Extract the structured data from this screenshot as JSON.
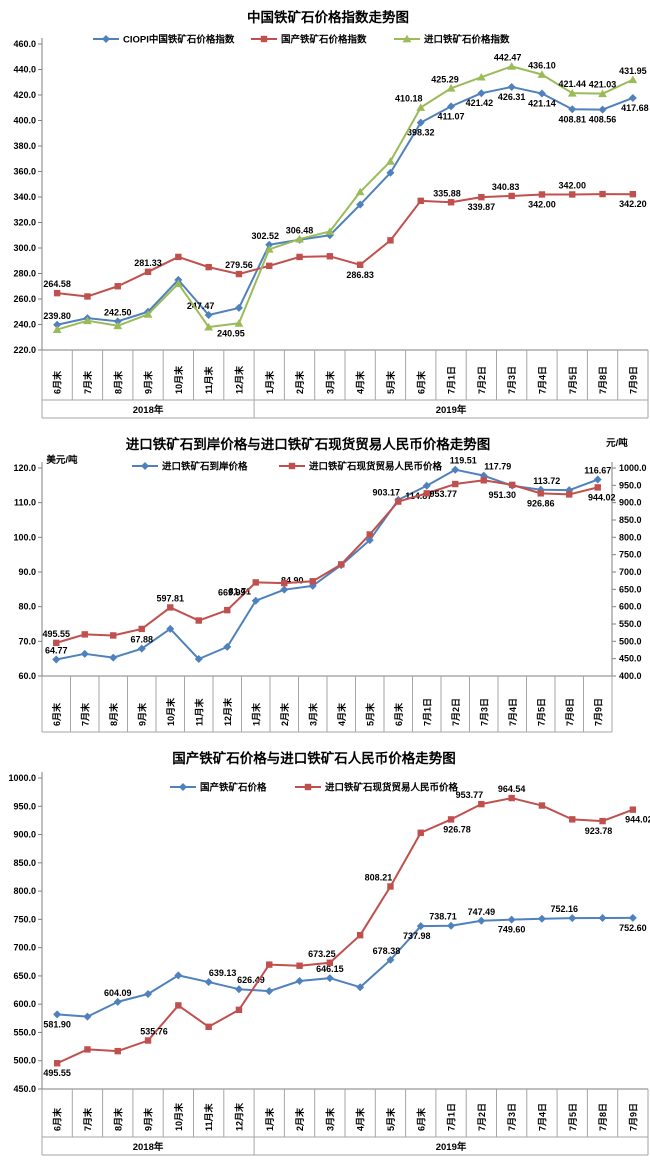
{
  "chart_data": [
    {
      "type": "line",
      "title": "中国铁矿石价格指数走势图",
      "legend_position": "top",
      "grid": "off",
      "y_axis": {
        "min": 220,
        "max": 460,
        "step": 20
      },
      "x_categories": [
        "6月末",
        "7月末",
        "8月末",
        "9月末",
        "10月末",
        "11月末",
        "12月末",
        "1月末",
        "2月末",
        "3月末",
        "4月末",
        "5月末",
        "6月末",
        "7月1日",
        "7月2日",
        "7月3日",
        "7月4日",
        "7月5日",
        "7月8日",
        "7月9日"
      ],
      "x_groups": [
        {
          "label": "2018年",
          "span": 7
        },
        {
          "label": "2019年",
          "span": 13
        }
      ],
      "series": [
        {
          "name": "CIOPI中国铁矿石价格指数",
          "color": "#4F81BD",
          "marker": "diamond",
          "axis": "left",
          "values": [
            239.8,
            245.0,
            242.5,
            250.0,
            275.0,
            247.47,
            253.0,
            302.52,
            306.48,
            310.0,
            334.0,
            359.0,
            398.32,
            411.07,
            421.42,
            426.31,
            421.14,
            408.81,
            408.56,
            417.68
          ],
          "point_labels": [
            {
              "i": 0,
              "text": "239.80",
              "pos": "above"
            },
            {
              "i": 2,
              "text": "242.50",
              "pos": "above"
            },
            {
              "i": 5,
              "text": "247.47",
              "pos": "above",
              "dx": -8
            },
            {
              "i": 7,
              "text": "302.52",
              "pos": "above",
              "dx": -4
            },
            {
              "i": 8,
              "text": "306.48",
              "pos": "above"
            },
            {
              "i": 12,
              "text": "398.32",
              "pos": "below"
            },
            {
              "i": 13,
              "text": "411.07",
              "pos": "below"
            },
            {
              "i": 14,
              "text": "421.42",
              "pos": "below",
              "dx": -2
            },
            {
              "i": 15,
              "text": "426.31",
              "pos": "below"
            },
            {
              "i": 16,
              "text": "421.14",
              "pos": "below"
            },
            {
              "i": 17,
              "text": "408.81",
              "pos": "below"
            },
            {
              "i": 18,
              "text": "408.56",
              "pos": "below"
            },
            {
              "i": 19,
              "text": "417.68",
              "pos": "below",
              "dx": 2
            }
          ]
        },
        {
          "name": "国产铁矿石价格指数",
          "color": "#C0504D",
          "marker": "square",
          "axis": "left",
          "values": [
            264.58,
            262.0,
            270.0,
            281.33,
            293.0,
            285.0,
            279.56,
            286.0,
            293.0,
            293.5,
            286.83,
            306.0,
            337.0,
            335.88,
            339.87,
            340.83,
            342.0,
            342.0,
            342.3,
            342.2
          ],
          "point_labels": [
            {
              "i": 0,
              "text": "264.58",
              "pos": "above"
            },
            {
              "i": 3,
              "text": "281.33",
              "pos": "above"
            },
            {
              "i": 6,
              "text": "279.56",
              "pos": "above"
            },
            {
              "i": 10,
              "text": "286.83",
              "pos": "below"
            },
            {
              "i": 13,
              "text": "335.88",
              "pos": "above",
              "dx": -4
            },
            {
              "i": 14,
              "text": "339.87",
              "pos": "below"
            },
            {
              "i": 15,
              "text": "340.83",
              "pos": "above",
              "dx": -6
            },
            {
              "i": 16,
              "text": "342.00",
              "pos": "below"
            },
            {
              "i": 17,
              "text": "342.00",
              "pos": "above"
            },
            {
              "i": 19,
              "text": "342.20",
              "pos": "below"
            }
          ]
        },
        {
          "name": "进口铁矿石价格指数",
          "color": "#9BBB59",
          "marker": "triangle",
          "axis": "left",
          "values": [
            236.0,
            243.0,
            239.0,
            248.0,
            272.0,
            238.0,
            240.95,
            299.0,
            307.0,
            313.0,
            344.0,
            368.0,
            410.18,
            425.29,
            434.0,
            442.47,
            436.1,
            421.44,
            421.03,
            431.95
          ],
          "point_labels": [
            {
              "i": 6,
              "text": "240.95",
              "pos": "below",
              "dx": -8
            },
            {
              "i": 12,
              "text": "410.18",
              "pos": "above",
              "dx": -12
            },
            {
              "i": 13,
              "text": "425.29",
              "pos": "above",
              "dx": -6
            },
            {
              "i": 15,
              "text": "442.47",
              "pos": "above",
              "dx": -4
            },
            {
              "i": 16,
              "text": "436.10",
              "pos": "above"
            },
            {
              "i": 17,
              "text": "421.44",
              "pos": "above"
            },
            {
              "i": 18,
              "text": "421.03",
              "pos": "above"
            },
            {
              "i": 19,
              "text": "431.95",
              "pos": "above"
            }
          ]
        }
      ]
    },
    {
      "type": "line",
      "title": "进口铁矿石到岸价格与进口铁矿石现货贸易人民币价格走势图",
      "legend_position": "top",
      "grid": "off",
      "y_axis": {
        "min": 60,
        "max": 120,
        "step": 10,
        "unit": "美元/吨"
      },
      "y2_axis": {
        "min": 400,
        "max": 1000,
        "step": 50,
        "unit": "元/吨"
      },
      "x_categories": [
        "6月末",
        "7月末",
        "8月末",
        "9月末",
        "10月末",
        "11月末",
        "12月末",
        "1月末",
        "2月末",
        "3月末",
        "4月末",
        "5月末",
        "6月末",
        "7月1日",
        "7月2日",
        "7月3日",
        "7月4日",
        "7月5日",
        "7月8日",
        "7月9日"
      ],
      "x_groups": null,
      "series": [
        {
          "name": "进口铁矿石到岸价格",
          "color": "#4F81BD",
          "marker": "diamond",
          "axis": "left",
          "values": [
            64.77,
            66.4,
            65.3,
            67.88,
            73.6,
            64.9,
            68.4,
            81.71,
            84.9,
            86.0,
            92.0,
            99.2,
            110.8,
            114.87,
            119.51,
            117.79,
            114.9,
            113.72,
            113.6,
            116.67
          ],
          "point_labels": [
            {
              "i": 0,
              "text": "64.77",
              "pos": "above"
            },
            {
              "i": 3,
              "text": "67.88",
              "pos": "above"
            },
            {
              "i": 7,
              "text": "81.71",
              "pos": "above",
              "dx": -16
            },
            {
              "i": 8,
              "text": "84.90",
              "pos": "above",
              "dx": 8
            },
            {
              "i": 13,
              "text": "114.87",
              "pos": "below",
              "dx": -8
            },
            {
              "i": 14,
              "text": "119.51",
              "pos": "above",
              "dx": 8
            },
            {
              "i": 15,
              "text": "117.79",
              "pos": "above",
              "dx": 14
            },
            {
              "i": 17,
              "text": "113.72",
              "pos": "above",
              "dx": 6
            },
            {
              "i": 19,
              "text": "116.67",
              "pos": "above"
            }
          ]
        },
        {
          "name": "进口铁矿石现货贸易人民币价格",
          "color": "#C0504D",
          "marker": "square",
          "axis": "right",
          "values": [
            495.55,
            520.0,
            517.0,
            535.76,
            597.81,
            560.0,
            590.0,
            669.99,
            668.0,
            673.25,
            722.0,
            808.21,
            903.17,
            926.78,
            953.77,
            964.54,
            951.3,
            926.86,
            923.78,
            944.02
          ],
          "point_labels": [
            {
              "i": 0,
              "text": "495.55",
              "pos": "above"
            },
            {
              "i": 4,
              "text": "597.81",
              "pos": "above"
            },
            {
              "i": 7,
              "text": "669.99",
              "pos": "below",
              "dx": -24
            },
            {
              "i": 12,
              "text": "903.17",
              "pos": "above",
              "dx": -12
            },
            {
              "i": 14,
              "text": "953.77",
              "pos": "below",
              "dx": -12
            },
            {
              "i": 16,
              "text": "951.30",
              "pos": "below",
              "dx": -10
            },
            {
              "i": 17,
              "text": "926.86",
              "pos": "below"
            },
            {
              "i": 19,
              "text": "944.02",
              "pos": "below",
              "dx": 4
            }
          ]
        }
      ]
    },
    {
      "type": "line",
      "title": "国产铁矿石价格与进口铁矿石人民币价格走势图",
      "legend_position": "top",
      "grid": "off",
      "y_axis": {
        "min": 450,
        "max": 1000,
        "step": 50
      },
      "x_categories": [
        "6月末",
        "7月末",
        "8月末",
        "9月末",
        "10月末",
        "11月末",
        "12月末",
        "1月末",
        "2月末",
        "3月末",
        "4月末",
        "5月末",
        "6月末",
        "7月1日",
        "7月2日",
        "7月3日",
        "7月4日",
        "7月5日",
        "7月8日",
        "7月9日"
      ],
      "x_groups": [
        {
          "label": "2018年",
          "span": 7
        },
        {
          "label": "2019年",
          "span": 13
        }
      ],
      "series": [
        {
          "name": "国产铁矿石价格",
          "color": "#4F81BD",
          "marker": "diamond",
          "axis": "left",
          "values": [
            581.9,
            578.0,
            604.09,
            618.0,
            651.0,
            639.13,
            626.49,
            623.0,
            641.0,
            646.15,
            630.0,
            678.38,
            737.98,
            738.71,
            747.49,
            749.6,
            751.0,
            752.16,
            752.4,
            752.6
          ],
          "point_labels": [
            {
              "i": 0,
              "text": "581.90",
              "pos": "below"
            },
            {
              "i": 2,
              "text": "604.09",
              "pos": "above"
            },
            {
              "i": 5,
              "text": "639.13",
              "pos": "above",
              "dx": 14
            },
            {
              "i": 6,
              "text": "626.49",
              "pos": "above",
              "dx": 12
            },
            {
              "i": 9,
              "text": "646.15",
              "pos": "above"
            },
            {
              "i": 11,
              "text": "678.38",
              "pos": "above",
              "dx": -4
            },
            {
              "i": 12,
              "text": "737.98",
              "pos": "below",
              "dx": -4
            },
            {
              "i": 13,
              "text": "738.71",
              "pos": "above",
              "dx": -8
            },
            {
              "i": 14,
              "text": "747.49",
              "pos": "above"
            },
            {
              "i": 15,
              "text": "749.60",
              "pos": "below"
            },
            {
              "i": 17,
              "text": "752.16",
              "pos": "above",
              "dx": -8
            },
            {
              "i": 19,
              "text": "752.60",
              "pos": "below"
            }
          ]
        },
        {
          "name": "进口铁矿石现货贸易人民币价格",
          "color": "#C0504D",
          "marker": "square",
          "axis": "left",
          "values": [
            495.55,
            520.0,
            517.0,
            535.76,
            597.81,
            560.0,
            590.0,
            669.99,
            668.0,
            673.25,
            722.0,
            808.21,
            903.17,
            926.78,
            953.77,
            964.54,
            951.3,
            926.86,
            923.78,
            944.02
          ],
          "point_labels": [
            {
              "i": 0,
              "text": "495.55",
              "pos": "below"
            },
            {
              "i": 3,
              "text": "535.76",
              "pos": "above",
              "dx": 6
            },
            {
              "i": 9,
              "text": "673.25",
              "pos": "above",
              "dx": -8
            },
            {
              "i": 11,
              "text": "808.21",
              "pos": "above",
              "dx": -12
            },
            {
              "i": 13,
              "text": "926.78",
              "pos": "below",
              "dx": 6
            },
            {
              "i": 14,
              "text": "953.77",
              "pos": "above",
              "dx": -12
            },
            {
              "i": 15,
              "text": "964.54",
              "pos": "above"
            },
            {
              "i": 18,
              "text": "923.78",
              "pos": "below",
              "dx": -4
            },
            {
              "i": 19,
              "text": "944.02",
              "pos": "below",
              "dx": 6
            }
          ]
        }
      ]
    }
  ]
}
